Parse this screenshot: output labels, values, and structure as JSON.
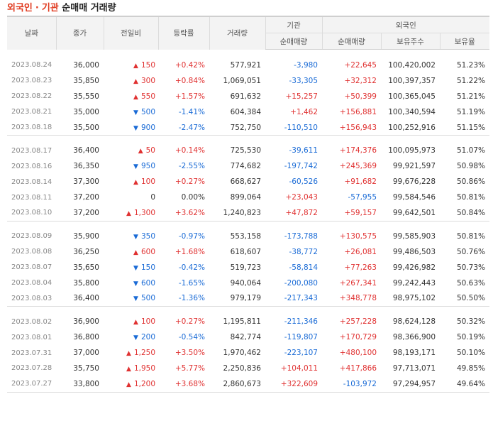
{
  "header": {
    "title_part1": "외국인",
    "title_dot": "·",
    "title_part2": "기관",
    "title_rest": "순매매 거래량"
  },
  "columns": {
    "date": "날짜",
    "close": "종가",
    "change": "전일비",
    "rate": "등락률",
    "volume": "거래량",
    "inst_group": "기관",
    "inst_net": "순매매량",
    "foreign_group": "외국인",
    "foreign_net": "순매매량",
    "foreign_hold": "보유주수",
    "foreign_ratio": "보유율"
  },
  "colors": {
    "up": "#e03131",
    "down": "#1a6bd6",
    "accent": "#e0391e"
  },
  "groups": [
    {
      "rows": [
        {
          "date": "2023.08.24",
          "close": "36,000",
          "dir": "up",
          "change": "150",
          "rate": "+0.42%",
          "volume": "577,921",
          "inst": "-3,980",
          "foreign": "+22,645",
          "hold": "100,420,002",
          "ratio": "51.23%"
        },
        {
          "date": "2023.08.23",
          "close": "35,850",
          "dir": "up",
          "change": "300",
          "rate": "+0.84%",
          "volume": "1,069,051",
          "inst": "-33,305",
          "foreign": "+32,312",
          "hold": "100,397,357",
          "ratio": "51.22%"
        },
        {
          "date": "2023.08.22",
          "close": "35,550",
          "dir": "up",
          "change": "550",
          "rate": "+1.57%",
          "volume": "691,632",
          "inst": "+15,257",
          "foreign": "+50,399",
          "hold": "100,365,045",
          "ratio": "51.21%"
        },
        {
          "date": "2023.08.21",
          "close": "35,000",
          "dir": "down",
          "change": "500",
          "rate": "-1.41%",
          "volume": "604,384",
          "inst": "+1,462",
          "foreign": "+156,881",
          "hold": "100,340,594",
          "ratio": "51.19%"
        },
        {
          "date": "2023.08.18",
          "close": "35,500",
          "dir": "down",
          "change": "900",
          "rate": "-2.47%",
          "volume": "752,750",
          "inst": "-110,510",
          "foreign": "+156,943",
          "hold": "100,252,916",
          "ratio": "51.15%"
        }
      ]
    },
    {
      "rows": [
        {
          "date": "2023.08.17",
          "close": "36,400",
          "dir": "up",
          "change": "50",
          "rate": "+0.14%",
          "volume": "725,530",
          "inst": "-39,611",
          "foreign": "+174,376",
          "hold": "100,095,973",
          "ratio": "51.07%"
        },
        {
          "date": "2023.08.16",
          "close": "36,350",
          "dir": "down",
          "change": "950",
          "rate": "-2.55%",
          "volume": "774,682",
          "inst": "-197,742",
          "foreign": "+245,369",
          "hold": "99,921,597",
          "ratio": "50.98%"
        },
        {
          "date": "2023.08.14",
          "close": "37,300",
          "dir": "up",
          "change": "100",
          "rate": "+0.27%",
          "volume": "668,627",
          "inst": "-60,526",
          "foreign": "+91,682",
          "hold": "99,676,228",
          "ratio": "50.86%"
        },
        {
          "date": "2023.08.11",
          "close": "37,200",
          "dir": "flat",
          "change": "0",
          "rate": "0.00%",
          "volume": "899,064",
          "inst": "+23,043",
          "foreign": "-57,955",
          "hold": "99,584,546",
          "ratio": "50.81%"
        },
        {
          "date": "2023.08.10",
          "close": "37,200",
          "dir": "up",
          "change": "1,300",
          "rate": "+3.62%",
          "volume": "1,240,823",
          "inst": "+47,872",
          "foreign": "+59,157",
          "hold": "99,642,501",
          "ratio": "50.84%"
        }
      ]
    },
    {
      "rows": [
        {
          "date": "2023.08.09",
          "close": "35,900",
          "dir": "down",
          "change": "350",
          "rate": "-0.97%",
          "volume": "553,158",
          "inst": "-173,788",
          "foreign": "+130,575",
          "hold": "99,585,903",
          "ratio": "50.81%"
        },
        {
          "date": "2023.08.08",
          "close": "36,250",
          "dir": "up",
          "change": "600",
          "rate": "+1.68%",
          "volume": "618,607",
          "inst": "-38,772",
          "foreign": "+26,081",
          "hold": "99,486,503",
          "ratio": "50.76%"
        },
        {
          "date": "2023.08.07",
          "close": "35,650",
          "dir": "down",
          "change": "150",
          "rate": "-0.42%",
          "volume": "519,723",
          "inst": "-58,814",
          "foreign": "+77,263",
          "hold": "99,426,982",
          "ratio": "50.73%"
        },
        {
          "date": "2023.08.04",
          "close": "35,800",
          "dir": "down",
          "change": "600",
          "rate": "-1.65%",
          "volume": "940,064",
          "inst": "-200,080",
          "foreign": "+267,341",
          "hold": "99,242,443",
          "ratio": "50.63%"
        },
        {
          "date": "2023.08.03",
          "close": "36,400",
          "dir": "down",
          "change": "500",
          "rate": "-1.36%",
          "volume": "979,179",
          "inst": "-217,343",
          "foreign": "+348,778",
          "hold": "98,975,102",
          "ratio": "50.50%"
        }
      ]
    },
    {
      "rows": [
        {
          "date": "2023.08.02",
          "close": "36,900",
          "dir": "up",
          "change": "100",
          "rate": "+0.27%",
          "volume": "1,195,811",
          "inst": "-211,346",
          "foreign": "+257,228",
          "hold": "98,624,128",
          "ratio": "50.32%"
        },
        {
          "date": "2023.08.01",
          "close": "36,800",
          "dir": "down",
          "change": "200",
          "rate": "-0.54%",
          "volume": "842,774",
          "inst": "-119,807",
          "foreign": "+170,729",
          "hold": "98,366,900",
          "ratio": "50.19%"
        },
        {
          "date": "2023.07.31",
          "close": "37,000",
          "dir": "up",
          "change": "1,250",
          "rate": "+3.50%",
          "volume": "1,970,462",
          "inst": "-223,107",
          "foreign": "+480,100",
          "hold": "98,193,171",
          "ratio": "50.10%"
        },
        {
          "date": "2023.07.28",
          "close": "35,750",
          "dir": "up",
          "change": "1,950",
          "rate": "+5.77%",
          "volume": "2,250,836",
          "inst": "+104,011",
          "foreign": "+417,866",
          "hold": "97,713,071",
          "ratio": "49.85%"
        },
        {
          "date": "2023.07.27",
          "close": "33,800",
          "dir": "up",
          "change": "1,200",
          "rate": "+3.68%",
          "volume": "2,860,673",
          "inst": "+322,609",
          "foreign": "-103,972",
          "hold": "97,294,957",
          "ratio": "49.64%"
        }
      ]
    }
  ]
}
